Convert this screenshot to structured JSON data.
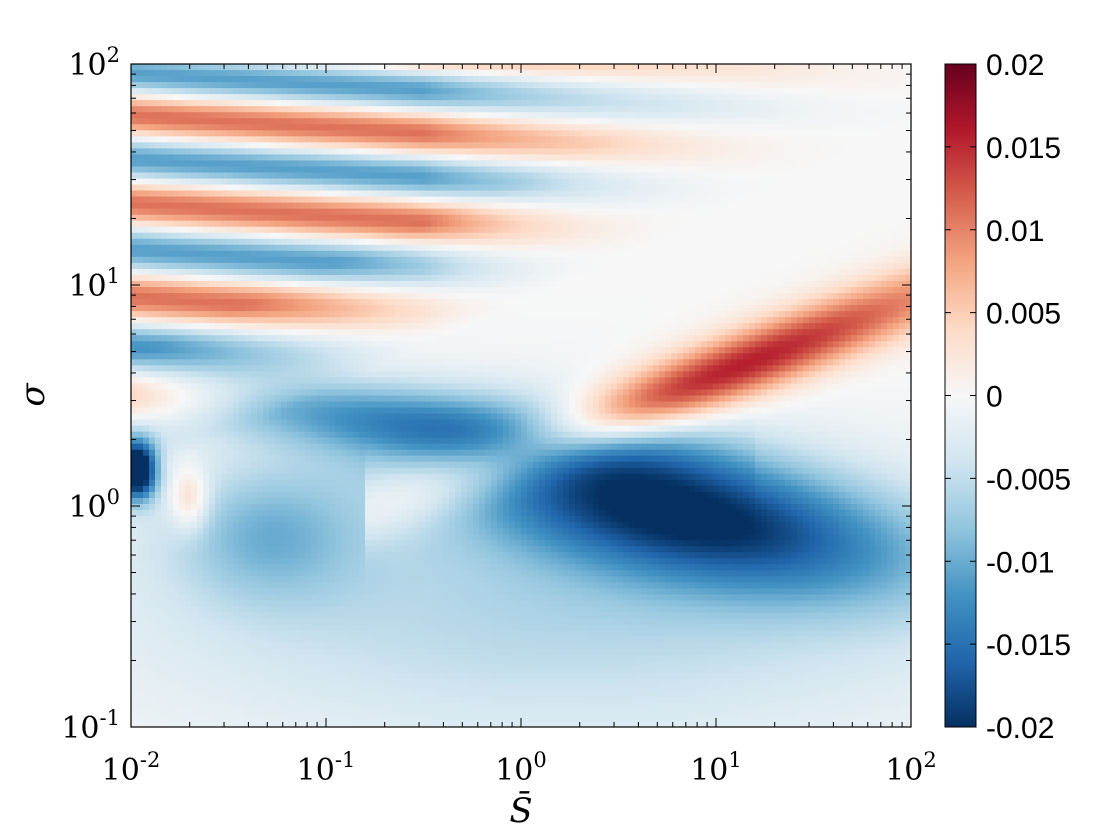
{
  "chart_data": {
    "type": "heatmap",
    "scale": {
      "x": "log",
      "y": "log"
    },
    "xlim": [
      0.01,
      100
    ],
    "ylim": [
      0.1,
      100
    ],
    "x_ticks": [
      {
        "base": "10",
        "exp": "-2"
      },
      {
        "base": "10",
        "exp": "-1"
      },
      {
        "base": "10",
        "exp": "0"
      },
      {
        "base": "10",
        "exp": "1"
      },
      {
        "base": "10",
        "exp": "2"
      }
    ],
    "y_ticks": [
      {
        "base": "10",
        "exp": "-1"
      },
      {
        "base": "10",
        "exp": "0"
      },
      {
        "base": "10",
        "exp": "1"
      },
      {
        "base": "10",
        "exp": "2"
      }
    ],
    "xlabel": "S̄",
    "ylabel": "σ",
    "colorbar": {
      "min": -0.02,
      "max": 0.02,
      "ticks": [
        "0.02",
        "0.015",
        "0.01",
        "0.005",
        "0",
        "-0.005",
        "-0.01",
        "-0.015",
        "-0.02"
      ],
      "colormap": "diverging red-blue",
      "colors": [
        "#053061",
        "#2166ac",
        "#4393c3",
        "#92c5de",
        "#d1e5f0",
        "#f7f7f7",
        "#fddbc7",
        "#f4a582",
        "#d6604d",
        "#b2182b",
        "#67001f"
      ]
    },
    "features": [
      {
        "kind": "min",
        "x": 6,
        "y": 1.0,
        "value": -0.018
      },
      {
        "kind": "min",
        "x": 0.011,
        "y": 1.45,
        "value": -0.02
      },
      {
        "kind": "max",
        "x": 11,
        "y": 4,
        "value": 0.01
      },
      {
        "kind": "max",
        "x": 0.02,
        "y": 1.1,
        "value": 0.006
      },
      {
        "kind": "min",
        "x": 0.05,
        "y": 0.75,
        "value": -0.007
      }
    ]
  }
}
